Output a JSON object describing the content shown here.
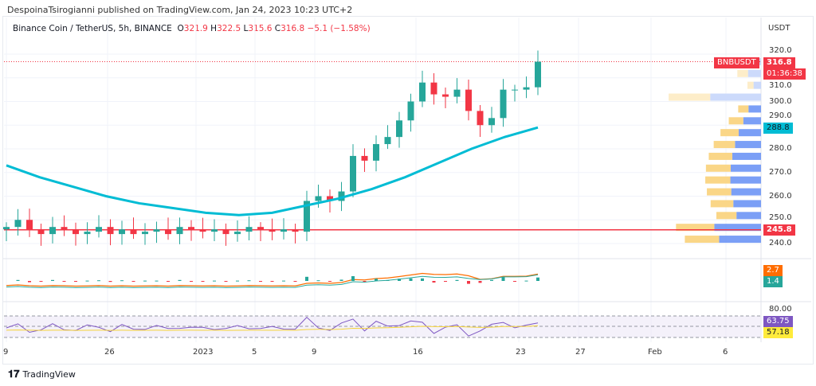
{
  "header": {
    "published": "DespoinaTsirogianni published on TradingView.com, Jan 24, 2023 10:23 UTC+2"
  },
  "legend": {
    "symbol": "Binance Coin / TetherUS, 5h, BINANCE",
    "o_label": "O",
    "o": "321.9",
    "h_label": "H",
    "h": "322.5",
    "l_label": "L",
    "l": "315.6",
    "c_label": "C",
    "c": "316.8",
    "change": "−5.1 (−1.58%)"
  },
  "price_axis": {
    "unit": "USDT",
    "ticks": [
      "320.0",
      "310.0",
      "300.0",
      "290.0",
      "280.0",
      "270.0",
      "260.0",
      "250.0",
      "240.0"
    ]
  },
  "labels": {
    "symbol_tag": "BNBUSDT",
    "last_price": "316.8",
    "countdown": "01:36:38",
    "ma_value": "288.8",
    "line_value": "245.8",
    "macd1": "2.7",
    "macd2": "1.4",
    "rsi_level": "80.00",
    "rsi": "63.75",
    "rsi_ma": "57.18"
  },
  "colors": {
    "up": "#26a69a",
    "down": "#f23645",
    "ma": "#00bcd4",
    "hline": "#f23645",
    "rsi": "#7e57c2",
    "rsi_ma": "#ffeb3b",
    "macd": "#ff6d00"
  },
  "footer": {
    "brand": "TradingView"
  },
  "chart_data": {
    "type": "candlestick",
    "x_ticks": [
      "9",
      "26",
      "2023",
      "5",
      "9",
      "16",
      "23",
      "27",
      "Feb",
      "6"
    ],
    "ylim": [
      236,
      326
    ],
    "closes": [
      247,
      250,
      246,
      244,
      247,
      246,
      244,
      245,
      247,
      244,
      246,
      244,
      245,
      246,
      244,
      247,
      246,
      245,
      246,
      244,
      245,
      247,
      246,
      245,
      246,
      245,
      258,
      260,
      258,
      262,
      277,
      275,
      282,
      285,
      292,
      300,
      308,
      303,
      302,
      305,
      296,
      290,
      293,
      305,
      305,
      306,
      316.8
    ],
    "ma": [
      273,
      268,
      264,
      260,
      257,
      255,
      253,
      252,
      253,
      256,
      259,
      263,
      268,
      274,
      280,
      285,
      289
    ],
    "horizontal_line": 245.8,
    "rsi": {
      "level_top": 80,
      "current": 63.75,
      "ma": 57.18
    }
  }
}
